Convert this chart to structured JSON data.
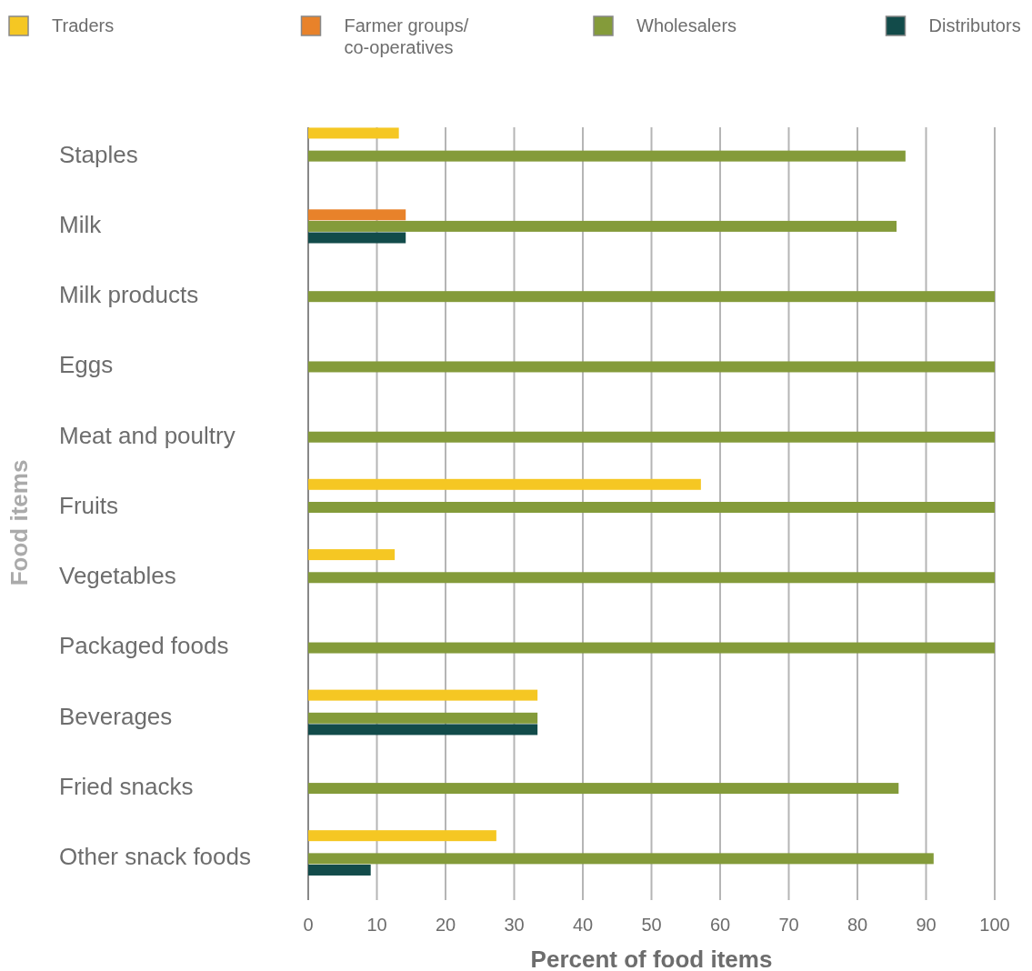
{
  "chart_data": {
    "type": "bar",
    "orientation": "horizontal",
    "xlabel": "Percent of food items",
    "ylabel": "Food items",
    "categories": [
      "Staples",
      "Milk",
      "Milk products",
      "Eggs",
      "Meat and poultry",
      "Fruits",
      "Vegetables",
      "Packaged foods",
      "Beverages",
      "Fried snacks",
      "Other snack foods"
    ],
    "series": [
      {
        "name": "Traders",
        "color": "#f5c723",
        "values": [
          13.2,
          null,
          null,
          null,
          null,
          57.2,
          12.6,
          null,
          33.4,
          null,
          27.4
        ]
      },
      {
        "name": "Farmer groups/\nco-operatives",
        "color": "#e8822a",
        "values": [
          null,
          14.2,
          null,
          null,
          null,
          null,
          null,
          null,
          null,
          null,
          null
        ]
      },
      {
        "name": "Wholesalers",
        "color": "#849b3a",
        "values": [
          87,
          85.7,
          100,
          100,
          100,
          100,
          100,
          100,
          33.4,
          86,
          91.1
        ]
      },
      {
        "name": "Distributors",
        "color": "#124b4a",
        "values": [
          null,
          14.2,
          null,
          null,
          null,
          null,
          null,
          null,
          33.4,
          null,
          9.1
        ]
      }
    ],
    "xlim": [
      0,
      100
    ],
    "xticks": [
      0,
      10,
      20,
      30,
      40,
      50,
      60,
      70,
      80,
      90,
      100
    ],
    "grid": "x",
    "legend": "top"
  }
}
